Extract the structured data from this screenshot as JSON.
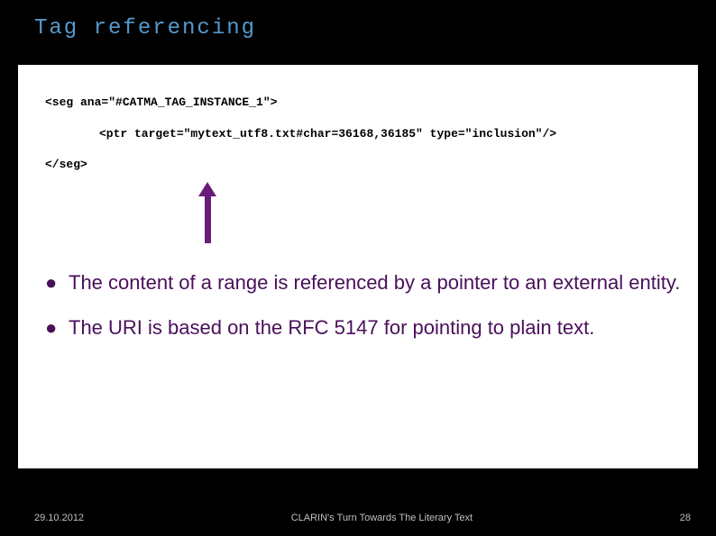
{
  "title": "Tag referencing",
  "code": {
    "line1": "<seg ana=\"#CATMA_TAG_INSTANCE_1\">",
    "line2": "<ptr target=\"mytext_utf8.txt#char=36168,36185\" type=\"inclusion\"/>",
    "line3": "</seg>"
  },
  "arrow": {
    "color": "#6a1b7a"
  },
  "bullets": [
    {
      "text": "The content of a range is referenced by a pointer to an external entity."
    },
    {
      "text": "The URI is based on the RFC 5147 for pointing to plain text."
    }
  ],
  "footer": {
    "date": "29.10.2012",
    "center": "CLARIN's Turn Towards The Literary Text",
    "page": "28"
  },
  "colors": {
    "background": "#000000",
    "content_bg": "#ffffff",
    "title_color": "#5599cc",
    "bullet_color": "#4a0f5a",
    "footer_color": "#c0c0c0"
  }
}
